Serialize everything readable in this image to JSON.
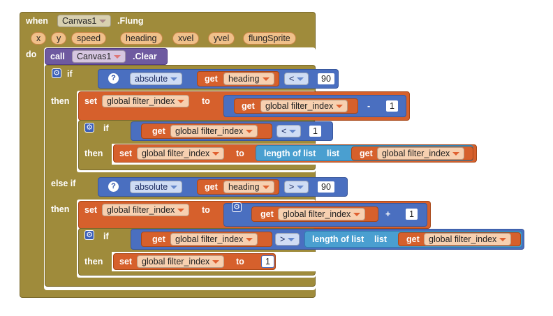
{
  "event": {
    "when": "when",
    "component": "Canvas1",
    "event_name": ".Flung",
    "params": [
      "x",
      "y",
      "speed",
      "heading",
      "xvel",
      "yvel",
      "flungSprite"
    ],
    "do": "do"
  },
  "call": {
    "call": "call",
    "component": "Canvas1",
    "method": ".Clear"
  },
  "kw": {
    "if": "if",
    "then": "then",
    "else_if": "else if",
    "get": "get",
    "set": "set",
    "to": "to",
    "absolute": "absolute",
    "length_of_list": "length of list",
    "list": "list",
    "qmark": "?",
    "gear": "⚙"
  },
  "vars": {
    "heading": "heading",
    "filter_index": "global filter_index"
  },
  "ops": {
    "lt": "<",
    "gt": ">",
    "minus": "-",
    "plus": "+"
  },
  "nums": {
    "n90a": "90",
    "n1a": "1",
    "n1b": "1",
    "n90b": "90",
    "n1c": "1",
    "n1d": "1"
  }
}
